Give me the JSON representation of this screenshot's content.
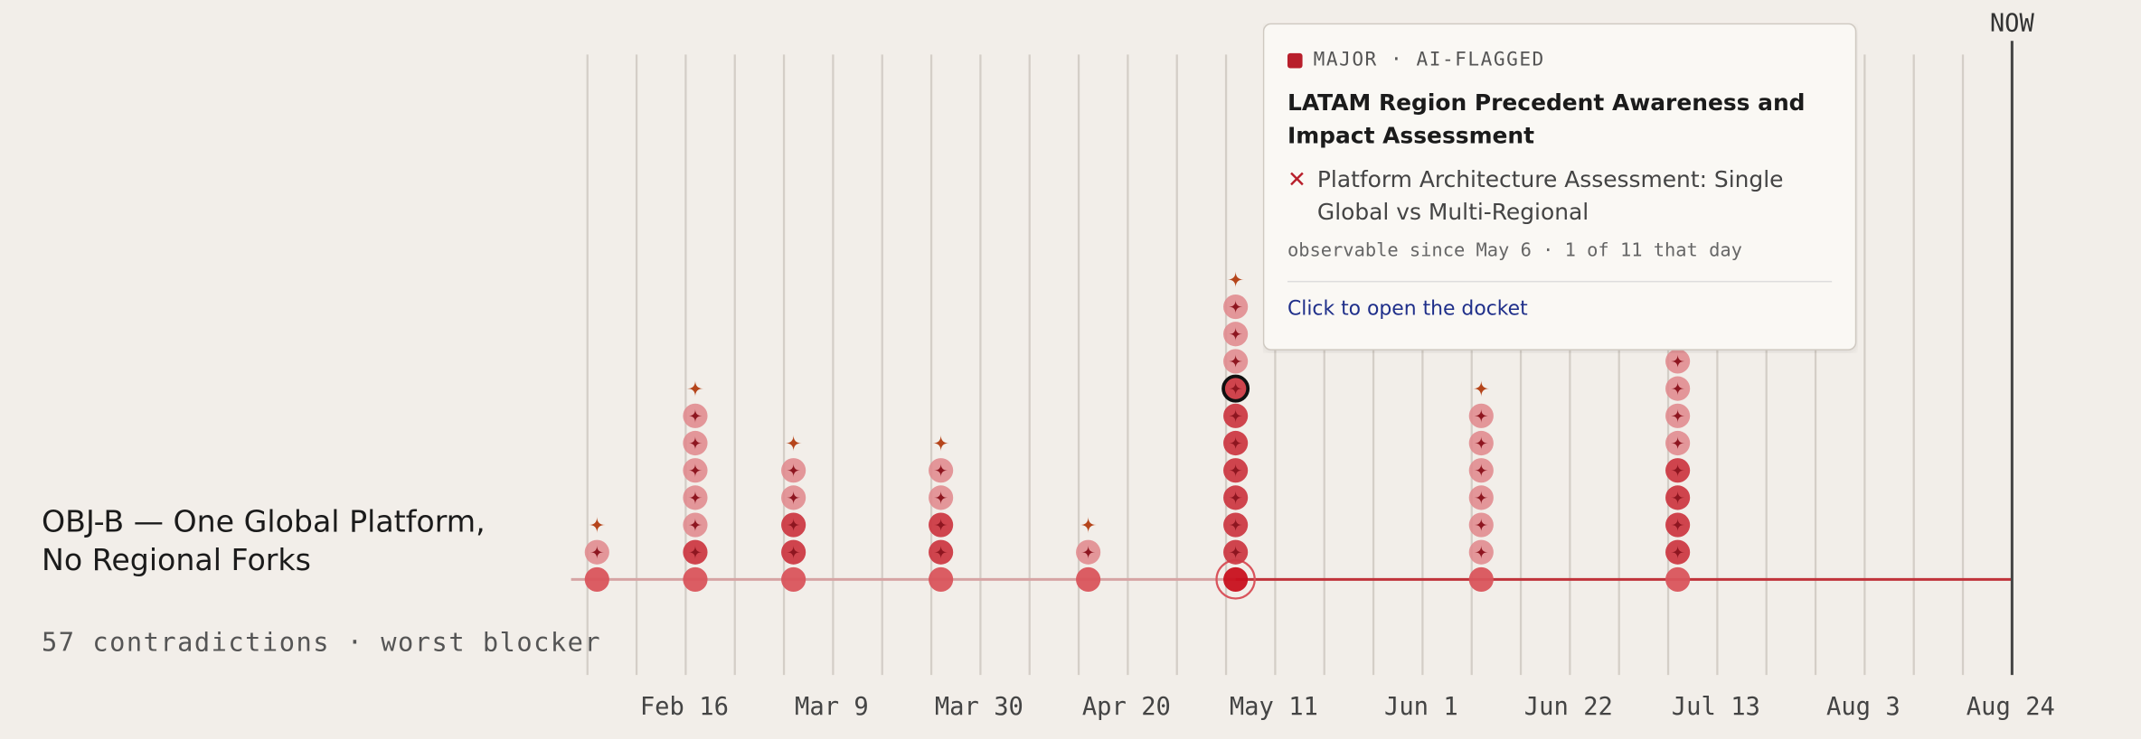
{
  "objective": {
    "title": "OBJ-B — One Global Platform, No Regional Forks",
    "summary": "57 contradictions · worst blocker"
  },
  "now_label": "NOW",
  "axis_labels": [
    "Feb 16",
    "Mar 9",
    "Mar 30",
    "Apr 20",
    "May 11",
    "Jun 1",
    "Jun 22",
    "Jul 13",
    "Aug 3",
    "Aug 24"
  ],
  "clusters": [
    {
      "count": 2,
      "major": 1
    },
    {
      "count": 7,
      "major": 2
    },
    {
      "count": 5,
      "major": 3
    },
    {
      "count": 5,
      "major": 3
    },
    {
      "count": 2,
      "major": 1
    },
    {
      "count": 11,
      "major": 8
    },
    {
      "count": 7,
      "major": 1
    },
    {
      "count": 18,
      "major": 5
    }
  ],
  "tooltip": {
    "badge": "MAJOR · AI-FLAGGED",
    "title": "LATAM Region Precedent Awareness and Impact Assessment",
    "contradicts": "Platform Architecture Assessment: Single Global vs Multi-Regional",
    "meta": "observable since May 6 · 1 of 11 that day",
    "link": "Click to open the docket"
  }
}
